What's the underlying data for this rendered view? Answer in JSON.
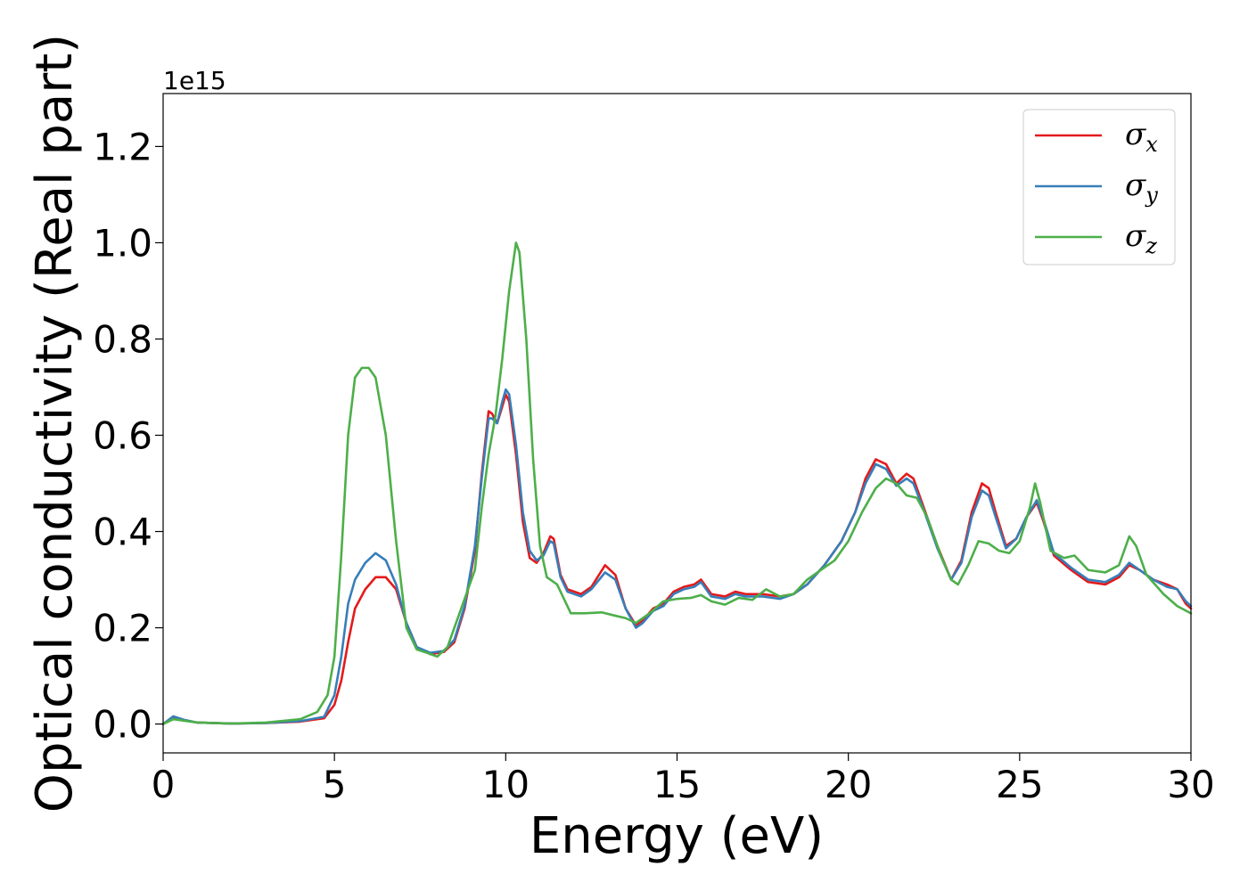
{
  "chart_data": {
    "type": "line",
    "xlabel": "Energy (eV)",
    "ylabel": "Optical conductivity (Real part)",
    "y_offset_label": "1e15",
    "xlim": [
      0,
      30
    ],
    "ylim": [
      -0.06,
      1.31
    ],
    "x_ticks": [
      0,
      5,
      10,
      15,
      20,
      25,
      30
    ],
    "x_tick_labels": [
      "0",
      "5",
      "10",
      "15",
      "20",
      "25",
      "30"
    ],
    "y_ticks": [
      0.0,
      0.2,
      0.4,
      0.6,
      0.8,
      1.0,
      1.2
    ],
    "y_tick_labels": [
      "0.0",
      "0.2",
      "0.4",
      "0.6",
      "0.8",
      "1.0",
      "1.2"
    ],
    "grid": false,
    "legend_position": "top-right",
    "series": [
      {
        "name": "σx",
        "symbol": "σ",
        "subscript": "x",
        "color": "#e41a1c",
        "points": [
          [
            0,
            0
          ],
          [
            0.3,
            0.014
          ],
          [
            0.6,
            0.008
          ],
          [
            1,
            0.003
          ],
          [
            2,
            0.001
          ],
          [
            3,
            0.002
          ],
          [
            4,
            0.005
          ],
          [
            4.7,
            0.012
          ],
          [
            5.0,
            0.04
          ],
          [
            5.2,
            0.09
          ],
          [
            5.4,
            0.17
          ],
          [
            5.6,
            0.24
          ],
          [
            5.9,
            0.28
          ],
          [
            6.2,
            0.305
          ],
          [
            6.5,
            0.305
          ],
          [
            6.8,
            0.28
          ],
          [
            7.1,
            0.21
          ],
          [
            7.4,
            0.16
          ],
          [
            7.8,
            0.145
          ],
          [
            8.2,
            0.15
          ],
          [
            8.5,
            0.17
          ],
          [
            8.8,
            0.24
          ],
          [
            9.1,
            0.36
          ],
          [
            9.3,
            0.52
          ],
          [
            9.5,
            0.65
          ],
          [
            9.6,
            0.645
          ],
          [
            9.75,
            0.625
          ],
          [
            9.9,
            0.66
          ],
          [
            10.0,
            0.685
          ],
          [
            10.1,
            0.67
          ],
          [
            10.3,
            0.56
          ],
          [
            10.5,
            0.42
          ],
          [
            10.7,
            0.345
          ],
          [
            10.9,
            0.335
          ],
          [
            11.1,
            0.355
          ],
          [
            11.3,
            0.39
          ],
          [
            11.4,
            0.385
          ],
          [
            11.6,
            0.31
          ],
          [
            11.8,
            0.28
          ],
          [
            12.2,
            0.27
          ],
          [
            12.5,
            0.285
          ],
          [
            12.9,
            0.33
          ],
          [
            13.2,
            0.31
          ],
          [
            13.5,
            0.24
          ],
          [
            13.8,
            0.205
          ],
          [
            14.0,
            0.215
          ],
          [
            14.3,
            0.24
          ],
          [
            14.6,
            0.25
          ],
          [
            14.9,
            0.275
          ],
          [
            15.2,
            0.285
          ],
          [
            15.5,
            0.29
          ],
          [
            15.7,
            0.3
          ],
          [
            16.0,
            0.27
          ],
          [
            16.4,
            0.265
          ],
          [
            16.7,
            0.275
          ],
          [
            17.0,
            0.27
          ],
          [
            17.5,
            0.27
          ],
          [
            18.0,
            0.265
          ],
          [
            18.4,
            0.27
          ],
          [
            18.8,
            0.29
          ],
          [
            19.3,
            0.33
          ],
          [
            19.8,
            0.38
          ],
          [
            20.2,
            0.44
          ],
          [
            20.5,
            0.51
          ],
          [
            20.8,
            0.55
          ],
          [
            21.1,
            0.54
          ],
          [
            21.4,
            0.5
          ],
          [
            21.7,
            0.52
          ],
          [
            21.9,
            0.51
          ],
          [
            22.2,
            0.45
          ],
          [
            22.6,
            0.37
          ],
          [
            23.0,
            0.3
          ],
          [
            23.3,
            0.34
          ],
          [
            23.6,
            0.44
          ],
          [
            23.9,
            0.5
          ],
          [
            24.1,
            0.49
          ],
          [
            24.3,
            0.44
          ],
          [
            24.6,
            0.37
          ],
          [
            24.9,
            0.385
          ],
          [
            25.2,
            0.43
          ],
          [
            25.5,
            0.46
          ],
          [
            25.7,
            0.42
          ],
          [
            26.0,
            0.35
          ],
          [
            26.5,
            0.32
          ],
          [
            27.0,
            0.295
          ],
          [
            27.5,
            0.29
          ],
          [
            27.9,
            0.305
          ],
          [
            28.2,
            0.33
          ],
          [
            28.5,
            0.32
          ],
          [
            28.9,
            0.3
          ],
          [
            29.3,
            0.29
          ],
          [
            29.6,
            0.28
          ],
          [
            29.85,
            0.25
          ],
          [
            30,
            0.24
          ]
        ]
      },
      {
        "name": "σy",
        "symbol": "σ",
        "subscript": "y",
        "color": "#377eb8",
        "points": [
          [
            0,
            0
          ],
          [
            0.3,
            0.016
          ],
          [
            0.6,
            0.009
          ],
          [
            1,
            0.003
          ],
          [
            2,
            0.001
          ],
          [
            3,
            0.002
          ],
          [
            4,
            0.006
          ],
          [
            4.7,
            0.015
          ],
          [
            5.0,
            0.06
          ],
          [
            5.2,
            0.14
          ],
          [
            5.4,
            0.25
          ],
          [
            5.6,
            0.3
          ],
          [
            5.9,
            0.335
          ],
          [
            6.2,
            0.355
          ],
          [
            6.5,
            0.34
          ],
          [
            6.8,
            0.29
          ],
          [
            7.1,
            0.21
          ],
          [
            7.4,
            0.16
          ],
          [
            7.8,
            0.148
          ],
          [
            8.2,
            0.152
          ],
          [
            8.5,
            0.175
          ],
          [
            8.8,
            0.245
          ],
          [
            9.1,
            0.37
          ],
          [
            9.3,
            0.51
          ],
          [
            9.5,
            0.635
          ],
          [
            9.6,
            0.635
          ],
          [
            9.75,
            0.625
          ],
          [
            9.9,
            0.67
          ],
          [
            10.0,
            0.695
          ],
          [
            10.1,
            0.685
          ],
          [
            10.3,
            0.58
          ],
          [
            10.5,
            0.44
          ],
          [
            10.7,
            0.36
          ],
          [
            10.9,
            0.34
          ],
          [
            11.1,
            0.35
          ],
          [
            11.3,
            0.38
          ],
          [
            11.4,
            0.375
          ],
          [
            11.6,
            0.305
          ],
          [
            11.8,
            0.275
          ],
          [
            12.2,
            0.265
          ],
          [
            12.5,
            0.28
          ],
          [
            12.9,
            0.315
          ],
          [
            13.2,
            0.3
          ],
          [
            13.5,
            0.24
          ],
          [
            13.8,
            0.2
          ],
          [
            14.0,
            0.21
          ],
          [
            14.3,
            0.235
          ],
          [
            14.6,
            0.245
          ],
          [
            14.9,
            0.27
          ],
          [
            15.2,
            0.28
          ],
          [
            15.5,
            0.285
          ],
          [
            15.7,
            0.295
          ],
          [
            16.0,
            0.265
          ],
          [
            16.4,
            0.26
          ],
          [
            16.7,
            0.27
          ],
          [
            17.0,
            0.265
          ],
          [
            17.5,
            0.265
          ],
          [
            18.0,
            0.26
          ],
          [
            18.4,
            0.27
          ],
          [
            18.8,
            0.29
          ],
          [
            19.3,
            0.33
          ],
          [
            19.8,
            0.38
          ],
          [
            20.2,
            0.44
          ],
          [
            20.5,
            0.5
          ],
          [
            20.8,
            0.54
          ],
          [
            21.1,
            0.53
          ],
          [
            21.4,
            0.495
          ],
          [
            21.7,
            0.51
          ],
          [
            21.9,
            0.5
          ],
          [
            22.2,
            0.445
          ],
          [
            22.6,
            0.365
          ],
          [
            23.0,
            0.3
          ],
          [
            23.3,
            0.335
          ],
          [
            23.6,
            0.43
          ],
          [
            23.9,
            0.485
          ],
          [
            24.1,
            0.475
          ],
          [
            24.3,
            0.43
          ],
          [
            24.6,
            0.365
          ],
          [
            24.9,
            0.385
          ],
          [
            25.2,
            0.43
          ],
          [
            25.5,
            0.465
          ],
          [
            25.7,
            0.425
          ],
          [
            26.0,
            0.355
          ],
          [
            26.5,
            0.325
          ],
          [
            27.0,
            0.3
          ],
          [
            27.5,
            0.295
          ],
          [
            27.9,
            0.31
          ],
          [
            28.2,
            0.335
          ],
          [
            28.5,
            0.32
          ],
          [
            28.9,
            0.3
          ],
          [
            29.3,
            0.285
          ],
          [
            29.6,
            0.28
          ],
          [
            29.85,
            0.255
          ],
          [
            30,
            0.245
          ]
        ]
      },
      {
        "name": "σz",
        "symbol": "σ",
        "subscript": "z",
        "color": "#4daf4a",
        "points": [
          [
            0,
            0
          ],
          [
            0.3,
            0.01
          ],
          [
            0.6,
            0.007
          ],
          [
            1,
            0.003
          ],
          [
            2,
            0.001
          ],
          [
            3,
            0.003
          ],
          [
            4,
            0.01
          ],
          [
            4.5,
            0.025
          ],
          [
            4.8,
            0.06
          ],
          [
            5.0,
            0.14
          ],
          [
            5.2,
            0.35
          ],
          [
            5.4,
            0.6
          ],
          [
            5.6,
            0.72
          ],
          [
            5.8,
            0.74
          ],
          [
            6.0,
            0.74
          ],
          [
            6.2,
            0.72
          ],
          [
            6.5,
            0.6
          ],
          [
            6.8,
            0.38
          ],
          [
            7.1,
            0.2
          ],
          [
            7.4,
            0.155
          ],
          [
            7.7,
            0.148
          ],
          [
            8.0,
            0.14
          ],
          [
            8.3,
            0.16
          ],
          [
            8.6,
            0.22
          ],
          [
            8.9,
            0.28
          ],
          [
            9.1,
            0.32
          ],
          [
            9.3,
            0.45
          ],
          [
            9.5,
            0.56
          ],
          [
            9.7,
            0.64
          ],
          [
            9.9,
            0.76
          ],
          [
            10.1,
            0.9
          ],
          [
            10.3,
            1.0
          ],
          [
            10.4,
            0.98
          ],
          [
            10.6,
            0.8
          ],
          [
            10.8,
            0.55
          ],
          [
            11.0,
            0.37
          ],
          [
            11.2,
            0.305
          ],
          [
            11.5,
            0.29
          ],
          [
            11.7,
            0.26
          ],
          [
            11.9,
            0.23
          ],
          [
            12.3,
            0.23
          ],
          [
            12.8,
            0.232
          ],
          [
            13.2,
            0.225
          ],
          [
            13.5,
            0.22
          ],
          [
            13.8,
            0.21
          ],
          [
            14.2,
            0.23
          ],
          [
            14.6,
            0.255
          ],
          [
            15.0,
            0.26
          ],
          [
            15.4,
            0.262
          ],
          [
            15.7,
            0.268
          ],
          [
            16.0,
            0.255
          ],
          [
            16.4,
            0.248
          ],
          [
            16.8,
            0.262
          ],
          [
            17.2,
            0.258
          ],
          [
            17.6,
            0.28
          ],
          [
            18.0,
            0.265
          ],
          [
            18.4,
            0.27
          ],
          [
            18.8,
            0.3
          ],
          [
            19.2,
            0.32
          ],
          [
            19.6,
            0.34
          ],
          [
            20.0,
            0.38
          ],
          [
            20.4,
            0.44
          ],
          [
            20.8,
            0.49
          ],
          [
            21.1,
            0.51
          ],
          [
            21.4,
            0.5
          ],
          [
            21.7,
            0.475
          ],
          [
            22.0,
            0.47
          ],
          [
            22.3,
            0.43
          ],
          [
            22.7,
            0.35
          ],
          [
            23.0,
            0.3
          ],
          [
            23.2,
            0.29
          ],
          [
            23.5,
            0.33
          ],
          [
            23.8,
            0.38
          ],
          [
            24.1,
            0.375
          ],
          [
            24.4,
            0.36
          ],
          [
            24.7,
            0.355
          ],
          [
            25.0,
            0.38
          ],
          [
            25.3,
            0.45
          ],
          [
            25.45,
            0.5
          ],
          [
            25.6,
            0.46
          ],
          [
            25.9,
            0.36
          ],
          [
            26.3,
            0.345
          ],
          [
            26.6,
            0.35
          ],
          [
            27.0,
            0.32
          ],
          [
            27.5,
            0.315
          ],
          [
            27.9,
            0.33
          ],
          [
            28.2,
            0.39
          ],
          [
            28.4,
            0.37
          ],
          [
            28.7,
            0.31
          ],
          [
            29.2,
            0.27
          ],
          [
            29.6,
            0.245
          ],
          [
            30,
            0.23
          ]
        ]
      }
    ]
  }
}
